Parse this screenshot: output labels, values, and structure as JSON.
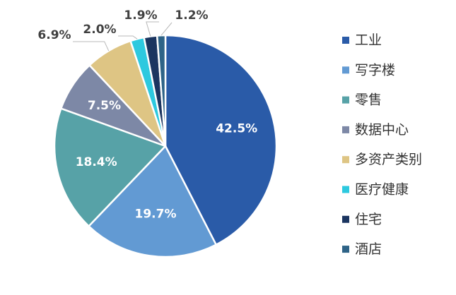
{
  "chart_data": {
    "type": "pie",
    "title": "",
    "categories": [
      "工业",
      "写字楼",
      "零售",
      "数据中心",
      "多资产类别",
      "医疗健康",
      "住宅",
      "酒店"
    ],
    "values": [
      42.5,
      19.7,
      18.4,
      7.5,
      6.9,
      2.0,
      1.9,
      1.2
    ],
    "value_labels": [
      "42.5%",
      "19.7%",
      "18.4%",
      "7.5%",
      "6.9%",
      "2.0%",
      "1.9%",
      "1.2%"
    ],
    "colors": [
      "#2a5ba8",
      "#629ad3",
      "#57a2a7",
      "#7d88a6",
      "#dec584",
      "#2dc9df",
      "#1b3560",
      "#2e6387"
    ],
    "start_angle": "12 o'clock",
    "direction": "clockwise",
    "legend_position": "right"
  }
}
